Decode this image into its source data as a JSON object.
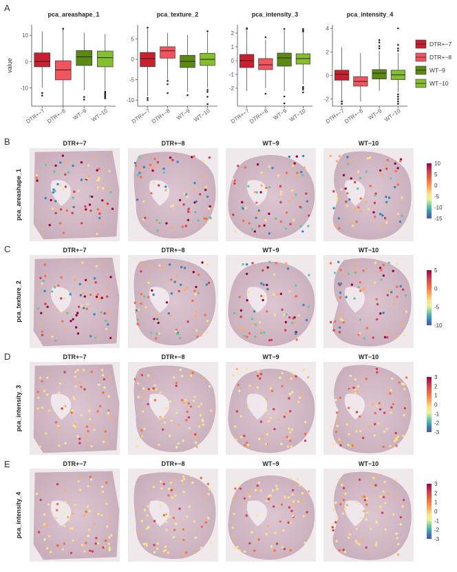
{
  "panel_labels": [
    "A",
    "B",
    "C",
    "D",
    "E"
  ],
  "samples": [
    "DTR+−7",
    "DTR+−8",
    "WT−9",
    "WT−10"
  ],
  "boxplot": {
    "ylabel": "value",
    "legend": [
      {
        "label": "DTR+−7",
        "color": "#c8202e"
      },
      {
        "label": "DTR+−8",
        "color": "#f2545d"
      },
      {
        "label": "WT−9",
        "color": "#5a8a10"
      },
      {
        "label": "WT−10",
        "color": "#84bf2d"
      }
    ]
  },
  "spatial_rows": [
    {
      "panel": "B",
      "metric": "pca_areashape_1",
      "colorbar_ticks": [
        10,
        5,
        0,
        -5,
        -10,
        -15
      ]
    },
    {
      "panel": "C",
      "metric": "pca_texture_2",
      "colorbar_ticks": [
        5,
        0,
        -5,
        -10
      ]
    },
    {
      "panel": "D",
      "metric": "pca_intensity_3",
      "colorbar_ticks": [
        3,
        2,
        1,
        0,
        -1,
        -2,
        -3
      ]
    },
    {
      "panel": "E",
      "metric": "pca_intensity_4",
      "colorbar_ticks": [
        3,
        2,
        1,
        0,
        -1,
        -2,
        -3
      ]
    }
  ],
  "chart_data": [
    {
      "type": "box",
      "title": "pca_areashape_1",
      "categories": [
        "DTR+−7",
        "DTR+−8",
        "WT−9",
        "WT−10"
      ],
      "ylim": [
        -17,
        14
      ],
      "yticks": [
        -10,
        0,
        10
      ],
      "boxes": [
        {
          "min": -10,
          "q1": -2,
          "median": 0,
          "q3": 3.3,
          "max": 11.5,
          "outliers": [
            -12,
            -13
          ]
        },
        {
          "min": -17,
          "q1": -7,
          "median": -3.2,
          "q3": 0.3,
          "max": 12.5,
          "outliers": [
            12.5
          ]
        },
        {
          "min": -11,
          "q1": -1.5,
          "median": 1.8,
          "q3": 4.2,
          "max": 11,
          "outliers": [
            -13.5,
            -14.5
          ]
        },
        {
          "min": -11,
          "q1": -2,
          "median": 1.5,
          "q3": 4,
          "max": 10.5,
          "outliers": [
            -11.5,
            -12,
            -12.5,
            -13,
            -13.5,
            -14
          ]
        }
      ]
    },
    {
      "type": "box",
      "title": "pca_texture_2",
      "categories": [
        "DTR+−7",
        "DTR+−8",
        "WT−9",
        "WT−10"
      ],
      "ylim": [
        -11.5,
        8.5
      ],
      "yticks": [
        -10,
        -5,
        0,
        5
      ],
      "boxes": [
        {
          "min": -9,
          "q1": -1.8,
          "median": 0.2,
          "q3": 1.7,
          "max": 7.5,
          "outliers": [
            7.8,
            -9.5,
            -10
          ]
        },
        {
          "min": -5,
          "q1": 0.3,
          "median": 2.1,
          "q3": 3.1,
          "max": 6.5,
          "outliers": [
            -5.3,
            -6.1,
            -8.3
          ]
        },
        {
          "min": -8,
          "q1": -2,
          "median": -0.5,
          "q3": 1,
          "max": 6,
          "outliers": [
            -8.8
          ]
        },
        {
          "min": -7,
          "q1": -1.5,
          "median": 0,
          "q3": 1.5,
          "max": 6.5,
          "outliers": [
            6.9,
            -7.5,
            -8,
            -9.2,
            -11
          ]
        }
      ]
    },
    {
      "type": "box",
      "title": "pca_intensity_3",
      "categories": [
        "DTR+−7",
        "DTR+−8",
        "WT−9",
        "WT−10"
      ],
      "ylim": [
        -3.3,
        2.6
      ],
      "yticks": [
        -2,
        -1,
        0,
        1,
        2
      ],
      "boxes": [
        {
          "min": -2.2,
          "q1": -0.5,
          "median": 0,
          "q3": 0.45,
          "max": 2.2,
          "outliers": [
            2.3,
            2.35
          ]
        },
        {
          "min": -2,
          "q1": -0.65,
          "median": -0.3,
          "q3": 0.15,
          "max": 1.5,
          "outliers": [
            1.7,
            -2.4
          ]
        },
        {
          "min": -2.2,
          "q1": -0.4,
          "median": 0.2,
          "q3": 0.55,
          "max": 2.2,
          "outliers": [
            2.3,
            -2.6,
            -3.1
          ]
        },
        {
          "min": -1.7,
          "q1": -0.25,
          "median": 0.15,
          "q3": 0.5,
          "max": 2,
          "outliers": [
            2.1,
            2.2,
            2.3,
            -1.9,
            -2.0,
            -2.1,
            -2.3
          ]
        }
      ]
    },
    {
      "type": "box",
      "title": "pca_intensity_4",
      "categories": [
        "DTR+−7",
        "DTR+−8",
        "WT−9",
        "WT−10"
      ],
      "ylim": [
        -2.6,
        4.3
      ],
      "yticks": [
        -2,
        0,
        2,
        4
      ],
      "boxes": [
        {
          "min": -2.1,
          "q1": -0.4,
          "median": 0.1,
          "q3": 0.45,
          "max": 2.4,
          "outliers": [
            -2.2,
            -2.4
          ]
        },
        {
          "min": -2.2,
          "q1": -0.9,
          "median": -0.5,
          "q3": -0.1,
          "max": 1.9,
          "outliers": []
        },
        {
          "min": -1.3,
          "q1": -0.3,
          "median": 0.2,
          "q3": 0.5,
          "max": 2.1,
          "outliers": [
            2.5,
            2.8,
            3.0,
            2.3
          ]
        },
        {
          "min": -1.4,
          "q1": -0.35,
          "median": 0.05,
          "q3": 0.45,
          "max": 1.9,
          "outliers": [
            2.1,
            2.3,
            2.6,
            4.0,
            -1.6,
            -1.8,
            -2.0,
            -2.2,
            -2.4
          ]
        }
      ]
    }
  ]
}
